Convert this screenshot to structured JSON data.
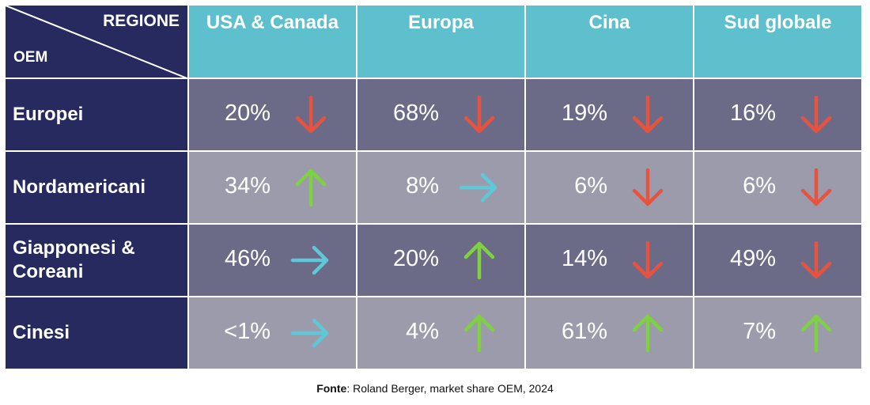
{
  "chart_data": {
    "type": "table",
    "corner": {
      "column_axis_label": "REGIONE",
      "row_axis_label": "OEM"
    },
    "columns": [
      "USA & Canada",
      "Europa",
      "Cina",
      "Sud globale"
    ],
    "rows": [
      {
        "label": "Europei",
        "cells": [
          {
            "value": "20%",
            "trend": "down"
          },
          {
            "value": "68%",
            "trend": "down"
          },
          {
            "value": "19%",
            "trend": "down"
          },
          {
            "value": "16%",
            "trend": "down"
          }
        ]
      },
      {
        "label": "Nordamericani",
        "cells": [
          {
            "value": "34%",
            "trend": "up"
          },
          {
            "value": "8%",
            "trend": "flat"
          },
          {
            "value": "6%",
            "trend": "down"
          },
          {
            "value": "6%",
            "trend": "down"
          }
        ]
      },
      {
        "label": "Giapponesi & Coreani",
        "cells": [
          {
            "value": "46%",
            "trend": "flat"
          },
          {
            "value": "20%",
            "trend": "up"
          },
          {
            "value": "14%",
            "trend": "down"
          },
          {
            "value": "49%",
            "trend": "down"
          }
        ]
      },
      {
        "label": "Cinesi",
        "cells": [
          {
            "value": "<1%",
            "trend": "flat"
          },
          {
            "value": "4%",
            "trend": "up"
          },
          {
            "value": "61%",
            "trend": "up"
          },
          {
            "value": "7%",
            "trend": "up"
          }
        ]
      }
    ],
    "source": {
      "label": "Fonte",
      "text": ": Roland Berger, market share OEM, 2024"
    },
    "colors": {
      "header_bg": "#5ec0cd",
      "row_label_bg": "#262a5e",
      "row_dark_bg": "#6b6b87",
      "row_light_bg": "#9c9bab",
      "trend_down": "#e8533f",
      "trend_up": "#7ed23f",
      "trend_flat": "#5ec8d8"
    }
  }
}
